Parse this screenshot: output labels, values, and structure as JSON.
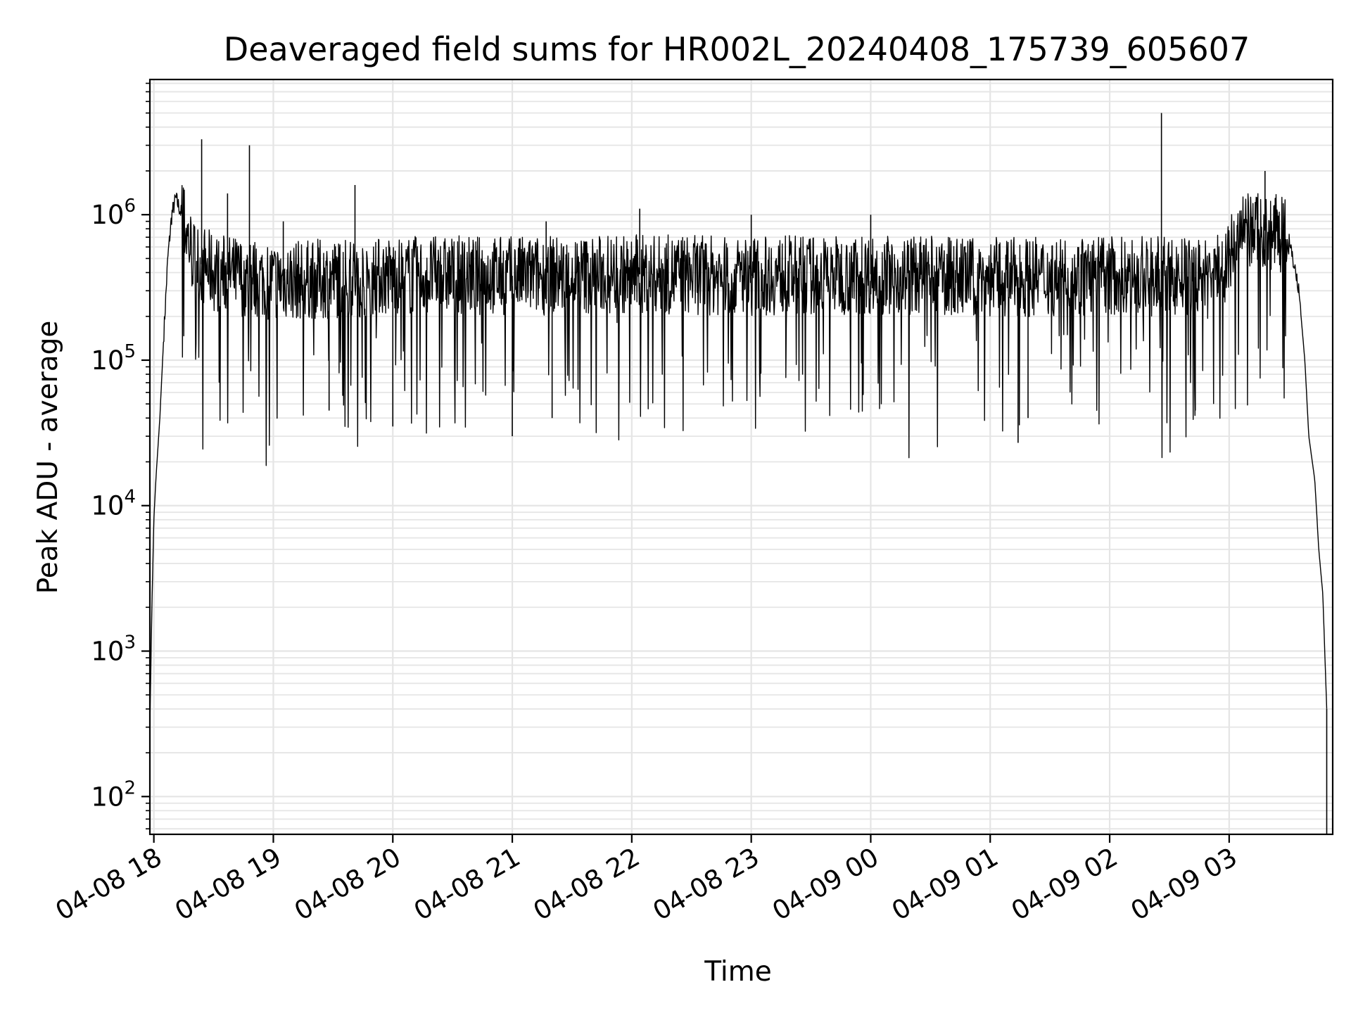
{
  "chart_data": {
    "type": "line",
    "title": "Deaveraged field sums for HR002L_20240408_175739_605607",
    "xlabel": "Time",
    "ylabel": "Peak ADU - average",
    "yscale": "log",
    "ylim": [
      55,
      8500000
    ],
    "xlim": [
      "2024-04-08 17:58",
      "2024-04-09 03:52"
    ],
    "grid": true,
    "line_color": "#000000",
    "grid_color": "#e5e5e5",
    "x_ticks": [
      {
        "t": "2024-04-08 18:00",
        "label": "04-08 18"
      },
      {
        "t": "2024-04-08 19:00",
        "label": "04-08 19"
      },
      {
        "t": "2024-04-08 20:00",
        "label": "04-08 20"
      },
      {
        "t": "2024-04-08 21:00",
        "label": "04-08 21"
      },
      {
        "t": "2024-04-08 22:00",
        "label": "04-08 22"
      },
      {
        "t": "2024-04-08 23:00",
        "label": "04-08 23"
      },
      {
        "t": "2024-04-09 00:00",
        "label": "04-09 00"
      },
      {
        "t": "2024-04-09 01:00",
        "label": "04-09 01"
      },
      {
        "t": "2024-04-09 02:00",
        "label": "04-09 02"
      },
      {
        "t": "2024-04-09 03:00",
        "label": "04-09 03"
      }
    ],
    "y_ticks": [
      {
        "value": 100,
        "base": "10",
        "exp": "2"
      },
      {
        "value": 1000,
        "base": "10",
        "exp": "3"
      },
      {
        "value": 10000,
        "base": "10",
        "exp": "4"
      },
      {
        "value": 100000,
        "base": "10",
        "exp": "5"
      },
      {
        "value": 1000000,
        "base": "10",
        "exp": "6"
      }
    ],
    "series": [
      {
        "points": [
          [
            "2024-04-08 17:58",
            300
          ],
          [
            "2024-04-08 17:59",
            2000
          ],
          [
            "2024-04-08 18:00",
            8000
          ],
          [
            "2024-04-08 18:01",
            15000
          ],
          [
            "2024-04-08 18:03",
            40000
          ],
          [
            "2024-04-08 18:05",
            150000
          ],
          [
            "2024-04-08 18:07",
            500000
          ],
          [
            "2024-04-08 18:09",
            1000000
          ],
          [
            "2024-04-08 18:11",
            1300000
          ],
          [
            "2024-04-08 18:14",
            1000000
          ],
          [
            "2024-04-08 18:20",
            500000
          ],
          [
            "2024-04-08 18:30",
            400000
          ],
          [
            "2024-04-08 19:00",
            350000
          ],
          [
            "2024-04-08 20:00",
            380000
          ],
          [
            "2024-04-08 21:00",
            380000
          ],
          [
            "2024-04-08 22:00",
            390000
          ],
          [
            "2024-04-08 23:00",
            380000
          ],
          [
            "2024-04-09 00:00",
            390000
          ],
          [
            "2024-04-09 01:00",
            370000
          ],
          [
            "2024-04-09 02:00",
            380000
          ],
          [
            "2024-04-09 02:50",
            370000
          ],
          [
            "2024-04-09 03:00",
            500000
          ],
          [
            "2024-04-09 03:05",
            700000
          ],
          [
            "2024-04-09 03:15",
            800000
          ],
          [
            "2024-04-09 03:30",
            700000
          ],
          [
            "2024-04-09 03:35",
            300000
          ],
          [
            "2024-04-09 03:38",
            100000
          ],
          [
            "2024-04-09 03:40",
            30000
          ],
          [
            "2024-04-09 03:43",
            15000
          ],
          [
            "2024-04-09 03:45",
            5000
          ],
          [
            "2024-04-09 03:47",
            2500
          ],
          [
            "2024-04-09 03:48",
            1000
          ],
          [
            "2024-04-09 03:49",
            400
          ],
          [
            "2024-04-09 03:49",
            55
          ]
        ],
        "spikes": [
          [
            "2024-04-08 18:24",
            3300000
          ],
          [
            "2024-04-08 18:37",
            1400000
          ],
          [
            "2024-04-08 18:48",
            3000000
          ],
          [
            "2024-04-08 19:05",
            900000
          ],
          [
            "2024-04-08 19:41",
            1600000
          ],
          [
            "2024-04-08 21:17",
            900000
          ],
          [
            "2024-04-08 22:04",
            1100000
          ],
          [
            "2024-04-08 23:00",
            1000000
          ],
          [
            "2024-04-09 00:00",
            1000000
          ],
          [
            "2024-04-09 02:26",
            5000000
          ],
          [
            "2024-04-09 03:18",
            2000000
          ],
          [
            "2024-04-08 20:00",
            35000
          ],
          [
            "2024-04-08 21:00",
            30000
          ],
          [
            "2024-04-08 21:20",
            40000
          ],
          [
            "2024-04-09 01:14",
            27000
          ],
          [
            "2024-04-09 01:19",
            40000
          ],
          [
            "2024-04-08 19:28",
            45000
          ],
          [
            "2024-04-09 02:43",
            45000
          ]
        ],
        "typical_range": [
          120000,
          700000
        ]
      }
    ]
  }
}
